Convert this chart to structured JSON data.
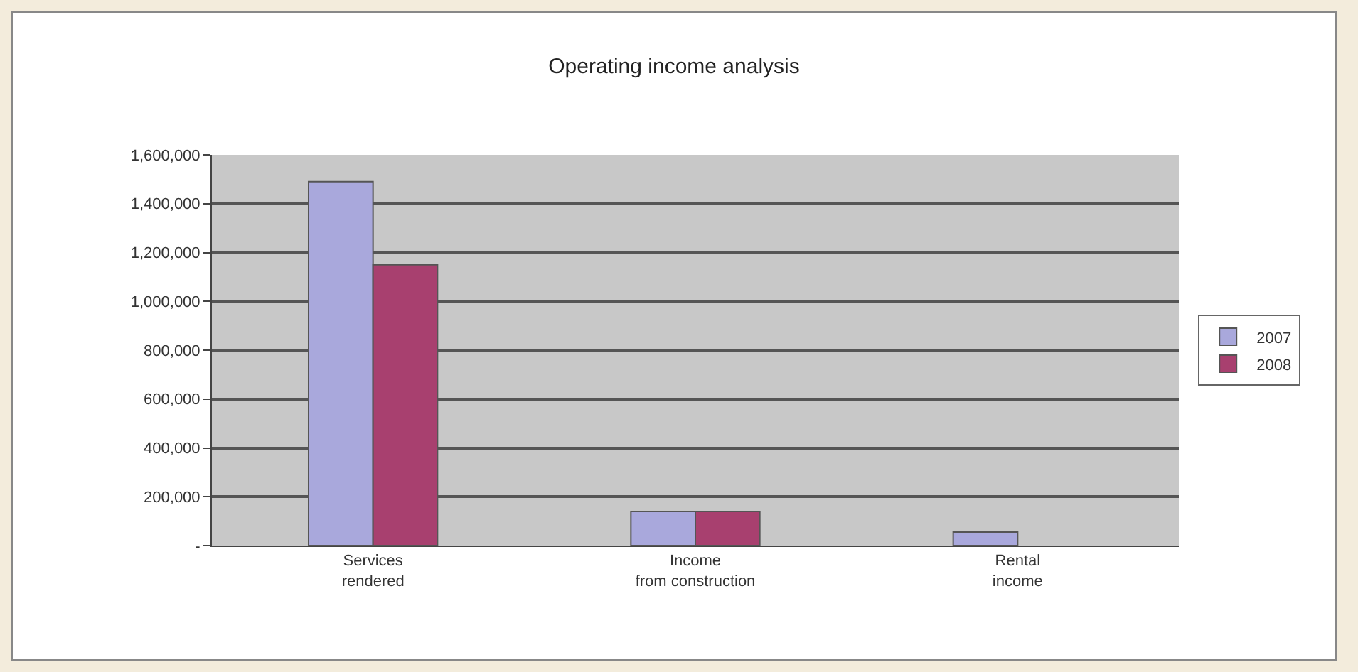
{
  "chart_data": {
    "type": "bar",
    "title": "Operating income analysis",
    "categories": [
      "Services rendered",
      "Income from construction",
      "Rental income"
    ],
    "series": [
      {
        "name": "2007",
        "color": "#a9a8dc",
        "values": [
          1490000,
          140000,
          55000
        ]
      },
      {
        "name": "2008",
        "color": "#a8406f",
        "values": [
          1150000,
          140000,
          null
        ]
      }
    ],
    "ylim": [
      0,
      1600000
    ],
    "yticks": [
      {
        "value": 0,
        "label": "-"
      },
      {
        "value": 200000,
        "label": "200,000"
      },
      {
        "value": 400000,
        "label": "400,000"
      },
      {
        "value": 600000,
        "label": "600,000"
      },
      {
        "value": 800000,
        "label": "800,000"
      },
      {
        "value": 1000000,
        "label": "1,000,000"
      },
      {
        "value": 1200000,
        "label": "1,200,000"
      },
      {
        "value": 1400000,
        "label": "1,400,000"
      },
      {
        "value": 1600000,
        "label": "1,600,000"
      }
    ],
    "grid": "y",
    "legend": "right"
  }
}
